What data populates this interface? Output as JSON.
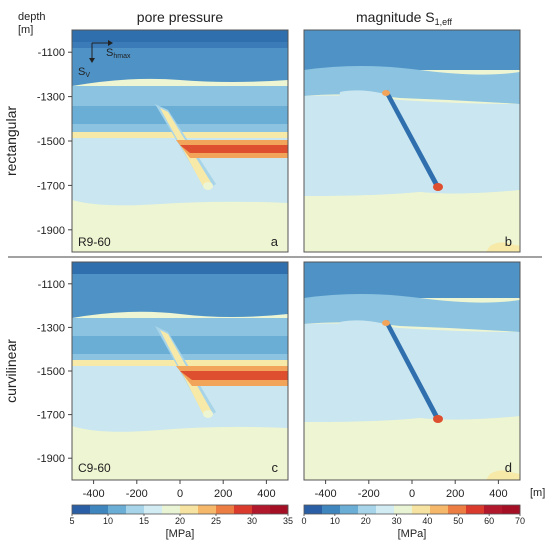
{
  "labels": {
    "depth": "depth",
    "depth_unit": "[m]",
    "col_left": "pore pressure",
    "col_right_main": "magnitude S",
    "col_right_sub": "1,eff",
    "row_top": "rectangular",
    "row_bottom": "curvilinear",
    "x_unit": "[m]",
    "cbar_left_unit": "[MPa]",
    "cbar_right_unit": "[MPa]",
    "axis_shmax": "S",
    "axis_shmax_sub": "hmax",
    "axis_sv": "S",
    "axis_sv_sub": "V"
  },
  "panels": [
    {
      "id": "a",
      "letter": "a",
      "model": "R9-60",
      "field": "pore-pressure",
      "layout": "rectangular"
    },
    {
      "id": "b",
      "letter": "b",
      "model": "",
      "field": "s1eff",
      "layout": "rectangular"
    },
    {
      "id": "c",
      "letter": "c",
      "model": "C9-60",
      "field": "pore-pressure",
      "layout": "curvilinear"
    },
    {
      "id": "d",
      "letter": "d",
      "model": "",
      "field": "s1eff",
      "layout": "curvilinear"
    }
  ],
  "y_ticks": [
    "-1100",
    "-1300",
    "-1500",
    "-1700",
    "-1900"
  ],
  "y_tick_values": [
    -1100,
    -1300,
    -1500,
    -1700,
    -1900
  ],
  "x_ticks": [
    "-400",
    "-200",
    "0",
    "200",
    "400"
  ],
  "x_tick_values": [
    -400,
    -200,
    0,
    200,
    400
  ],
  "x_range": [
    -500,
    500
  ],
  "y_range": [
    -2000,
    -1000
  ],
  "colorbar_left": {
    "ticks": [
      "5",
      "10",
      "15",
      "20",
      "25",
      "30",
      "35"
    ],
    "tick_values": [
      5,
      10,
      15,
      20,
      25,
      30,
      35
    ],
    "colors": [
      "#2a5fa6",
      "#3f86bf",
      "#6aaed6",
      "#a7d4e8",
      "#d3ecf3",
      "#e8f4d4",
      "#f6e3a1",
      "#f5b86a",
      "#ec7d42",
      "#d93a2b",
      "#b2182b",
      "#a50f26"
    ]
  },
  "colorbar_right": {
    "ticks": [
      "0",
      "10",
      "20",
      "30",
      "40",
      "50",
      "60",
      "70"
    ],
    "tick_values": [
      0,
      10,
      20,
      30,
      40,
      50,
      60,
      70
    ],
    "colors": [
      "#2a5fa6",
      "#3f86bf",
      "#6aaed6",
      "#a7d4e8",
      "#d3ecf3",
      "#e8f4d4",
      "#f6e3a1",
      "#f5b86a",
      "#ec7d42",
      "#d93a2b",
      "#b2182b",
      "#a50f26"
    ]
  },
  "palette": {
    "deep": "#2f6fae",
    "mid": "#4f93c6",
    "light": "#8cc3e0",
    "pale": "#c9e6f1",
    "cream": "#eef5d2",
    "yellow": "#f7e9a8",
    "orange": "#f3a45b",
    "red": "#de4f2f"
  }
}
